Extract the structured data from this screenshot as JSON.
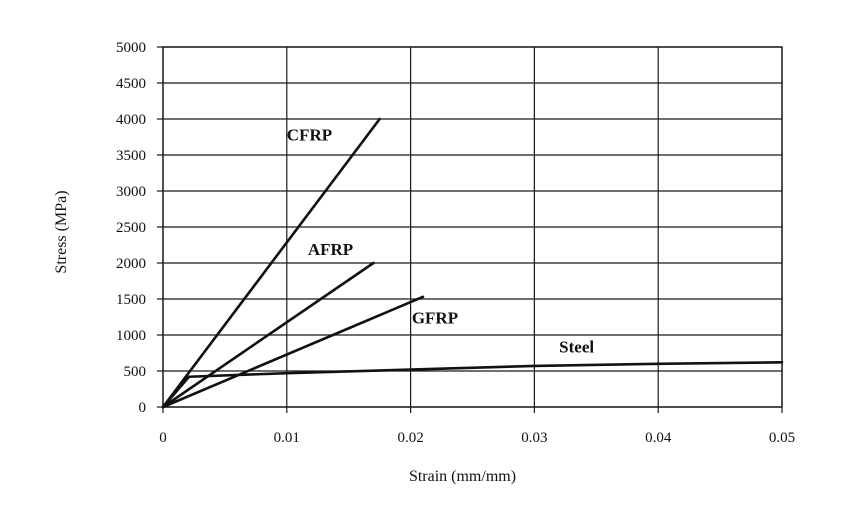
{
  "chart_data": {
    "type": "line",
    "title": "",
    "xlabel": "Strain (mm/mm)",
    "ylabel": "Stress (MPa)",
    "xlim": [
      0,
      0.05
    ],
    "ylim": [
      0,
      5000
    ],
    "x_ticks": [
      "0",
      "0.01",
      "0.02",
      "0.03",
      "0.04",
      "0.05"
    ],
    "y_ticks": [
      "0",
      "500",
      "1000",
      "1500",
      "2000",
      "2500",
      "3000",
      "3500",
      "4000",
      "4500",
      "5000"
    ],
    "grid": true,
    "legend": "none",
    "series": [
      {
        "name": "CFRP",
        "x": [
          0,
          0.0175
        ],
        "y": [
          0,
          4000
        ]
      },
      {
        "name": "AFRP",
        "x": [
          0,
          0.017
        ],
        "y": [
          0,
          2000
        ]
      },
      {
        "name": "GFRP",
        "x": [
          0,
          0.021
        ],
        "y": [
          0,
          1530
        ]
      },
      {
        "name": "Steel",
        "x": [
          0,
          0.0021,
          0.01,
          0.02,
          0.03,
          0.04,
          0.05
        ],
        "y": [
          0,
          420,
          470,
          520,
          570,
          600,
          620
        ]
      }
    ]
  }
}
